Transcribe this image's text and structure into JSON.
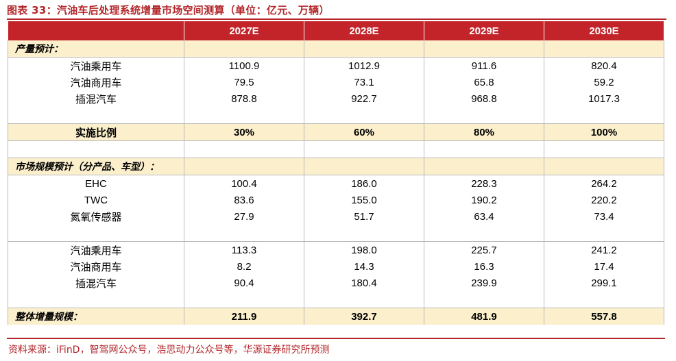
{
  "title": "图表 33：汽油车后处理系统增量市场空间测算（单位：亿元、万辆）",
  "columns": [
    "",
    "2027E",
    "2028E",
    "2029E",
    "2030E"
  ],
  "section1_label": "产量预计：",
  "production": [
    {
      "label": "汽油乘用车",
      "values": [
        "1100.9",
        "1012.9",
        "911.6",
        "820.4"
      ]
    },
    {
      "label": "汽油商用车",
      "values": [
        "79.5",
        "73.1",
        "65.8",
        "59.2"
      ]
    },
    {
      "label": "插混汽车",
      "values": [
        "878.8",
        "922.7",
        "968.8",
        "1017.3"
      ]
    }
  ],
  "ratio": {
    "label": "实施比例",
    "values": [
      "30%",
      "60%",
      "80%",
      "100%"
    ]
  },
  "section2_label": "市场规模预计（分产品、车型）：",
  "by_product": [
    {
      "label": "EHC",
      "values": [
        "100.4",
        "186.0",
        "228.3",
        "264.2"
      ]
    },
    {
      "label": "TWC",
      "values": [
        "83.6",
        "155.0",
        "190.2",
        "220.2"
      ]
    },
    {
      "label": "氮氧传感器",
      "values": [
        "27.9",
        "51.7",
        "63.4",
        "73.4"
      ]
    }
  ],
  "by_vehicle": [
    {
      "label": "汽油乘用车",
      "values": [
        "113.3",
        "198.0",
        "225.7",
        "241.2"
      ]
    },
    {
      "label": "汽油商用车",
      "values": [
        "8.2",
        "14.3",
        "16.3",
        "17.4"
      ]
    },
    {
      "label": "插混汽车",
      "values": [
        "90.4",
        "180.4",
        "239.9",
        "299.1"
      ]
    }
  ],
  "total": {
    "label": "整体增量规模：",
    "values": [
      "211.9",
      "392.7",
      "481.9",
      "557.8"
    ]
  },
  "source": "资料来源：iFinD，智驾网公众号，浩思动力公众号等，华源证券研究所预测",
  "colors": {
    "accent": "#c3242a",
    "highlight": "#fbefcc"
  }
}
